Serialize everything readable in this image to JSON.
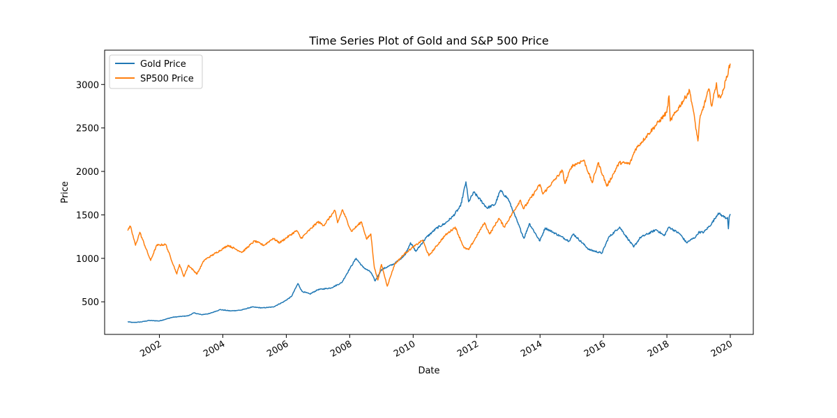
{
  "chart_data": {
    "type": "line",
    "title": "Time Series Plot of Gold and S&P 500 Price",
    "xlabel": "Date",
    "ylabel": "Price",
    "xlim": [
      "2000-04-10",
      "2020-09-22"
    ],
    "ylim": [
      125,
      3395
    ],
    "xticks": [
      "2002",
      "2004",
      "2006",
      "2008",
      "2010",
      "2012",
      "2014",
      "2016",
      "2018",
      "2020"
    ],
    "yticks": [
      500,
      1000,
      1500,
      2000,
      2500,
      3000
    ],
    "legend": "upper left",
    "grid": false,
    "series": [
      {
        "name": "Gold Price",
        "color": "#1f77b4",
        "points": [
          [
            "2001-01-01",
            270
          ],
          [
            "2001-03-01",
            262
          ],
          [
            "2001-06-01",
            268
          ],
          [
            "2001-09-01",
            285
          ],
          [
            "2002-01-01",
            280
          ],
          [
            "2002-06-01",
            322
          ],
          [
            "2002-12-01",
            340
          ],
          [
            "2003-02-01",
            372
          ],
          [
            "2003-05-01",
            352
          ],
          [
            "2003-08-01",
            365
          ],
          [
            "2003-12-01",
            410
          ],
          [
            "2004-04-01",
            395
          ],
          [
            "2004-08-01",
            405
          ],
          [
            "2004-12-01",
            440
          ],
          [
            "2005-04-01",
            430
          ],
          [
            "2005-08-01",
            440
          ],
          [
            "2005-12-01",
            500
          ],
          [
            "2006-03-01",
            560
          ],
          [
            "2006-05-15",
            710
          ],
          [
            "2006-07-01",
            620
          ],
          [
            "2006-10-01",
            590
          ],
          [
            "2007-01-01",
            640
          ],
          [
            "2007-06-01",
            660
          ],
          [
            "2007-10-01",
            720
          ],
          [
            "2008-01-01",
            880
          ],
          [
            "2008-03-15",
            1000
          ],
          [
            "2008-06-01",
            900
          ],
          [
            "2008-09-01",
            840
          ],
          [
            "2008-10-20",
            740
          ],
          [
            "2009-01-01",
            870
          ],
          [
            "2009-06-01",
            940
          ],
          [
            "2009-10-01",
            1040
          ],
          [
            "2009-12-01",
            1180
          ],
          [
            "2010-02-01",
            1080
          ],
          [
            "2010-06-01",
            1240
          ],
          [
            "2010-10-01",
            1350
          ],
          [
            "2011-01-01",
            1400
          ],
          [
            "2011-04-01",
            1480
          ],
          [
            "2011-07-01",
            1600
          ],
          [
            "2011-09-01",
            1880
          ],
          [
            "2011-10-01",
            1650
          ],
          [
            "2011-12-01",
            1760
          ],
          [
            "2012-05-01",
            1580
          ],
          [
            "2012-08-01",
            1620
          ],
          [
            "2012-10-01",
            1780
          ],
          [
            "2013-01-01",
            1680
          ],
          [
            "2013-04-15",
            1420
          ],
          [
            "2013-06-30",
            1230
          ],
          [
            "2013-09-01",
            1400
          ],
          [
            "2013-12-30",
            1200
          ],
          [
            "2014-03-01",
            1350
          ],
          [
            "2014-06-01",
            1300
          ],
          [
            "2014-09-01",
            1250
          ],
          [
            "2014-12-01",
            1200
          ],
          [
            "2015-01-20",
            1280
          ],
          [
            "2015-07-20",
            1100
          ],
          [
            "2015-12-15",
            1060
          ],
          [
            "2016-03-01",
            1240
          ],
          [
            "2016-07-05",
            1360
          ],
          [
            "2016-12-15",
            1130
          ],
          [
            "2017-03-01",
            1240
          ],
          [
            "2017-09-01",
            1330
          ],
          [
            "2017-12-01",
            1260
          ],
          [
            "2018-01-25",
            1360
          ],
          [
            "2018-06-01",
            1280
          ],
          [
            "2018-08-15",
            1180
          ],
          [
            "2018-12-01",
            1250
          ],
          [
            "2019-01-01",
            1300
          ],
          [
            "2019-03-01",
            1300
          ],
          [
            "2019-06-01",
            1400
          ],
          [
            "2019-08-15",
            1520
          ],
          [
            "2019-10-01",
            1490
          ],
          [
            "2019-11-20",
            1460
          ],
          [
            "2019-12-01",
            1470
          ],
          [
            "2019-12-10",
            1340
          ],
          [
            "2019-12-20",
            1480
          ],
          [
            "2019-12-31",
            1510
          ]
        ]
      },
      {
        "name": "SP500 Price",
        "color": "#ff7f0e",
        "points": [
          [
            "2001-01-01",
            1320
          ],
          [
            "2001-01-31",
            1370
          ],
          [
            "2001-04-01",
            1150
          ],
          [
            "2001-05-20",
            1300
          ],
          [
            "2001-09-21",
            975
          ],
          [
            "2001-12-01",
            1150
          ],
          [
            "2002-03-15",
            1160
          ],
          [
            "2002-07-20",
            820
          ],
          [
            "2002-08-20",
            930
          ],
          [
            "2002-10-10",
            790
          ],
          [
            "2002-12-01",
            920
          ],
          [
            "2003-03-10",
            820
          ],
          [
            "2003-06-01",
            980
          ],
          [
            "2003-12-31",
            1110
          ],
          [
            "2004-03-01",
            1150
          ],
          [
            "2004-08-10",
            1070
          ],
          [
            "2004-12-31",
            1200
          ],
          [
            "2005-04-20",
            1150
          ],
          [
            "2005-08-01",
            1230
          ],
          [
            "2005-10-15",
            1180
          ],
          [
            "2006-05-01",
            1320
          ],
          [
            "2006-06-20",
            1230
          ],
          [
            "2006-12-31",
            1420
          ],
          [
            "2007-03-10",
            1380
          ],
          [
            "2007-07-15",
            1550
          ],
          [
            "2007-08-15",
            1410
          ],
          [
            "2007-10-10",
            1560
          ],
          [
            "2008-01-20",
            1310
          ],
          [
            "2008-05-15",
            1420
          ],
          [
            "2008-07-15",
            1220
          ],
          [
            "2008-09-01",
            1280
          ],
          [
            "2008-10-10",
            900
          ],
          [
            "2008-11-20",
            750
          ],
          [
            "2009-01-01",
            930
          ],
          [
            "2009-03-09",
            680
          ],
          [
            "2009-06-01",
            930
          ],
          [
            "2009-10-01",
            1060
          ],
          [
            "2010-04-20",
            1210
          ],
          [
            "2010-07-01",
            1030
          ],
          [
            "2010-12-31",
            1260
          ],
          [
            "2011-04-30",
            1360
          ],
          [
            "2011-08-10",
            1120
          ],
          [
            "2011-10-03",
            1100
          ],
          [
            "2012-04-01",
            1410
          ],
          [
            "2012-06-01",
            1280
          ],
          [
            "2012-09-15",
            1460
          ],
          [
            "2012-11-15",
            1360
          ],
          [
            "2013-05-20",
            1670
          ],
          [
            "2013-06-25",
            1570
          ],
          [
            "2013-12-31",
            1850
          ],
          [
            "2014-02-03",
            1740
          ],
          [
            "2014-09-15",
            2010
          ],
          [
            "2014-10-15",
            1860
          ],
          [
            "2014-12-31",
            2060
          ],
          [
            "2015-05-20",
            2130
          ],
          [
            "2015-08-25",
            1870
          ],
          [
            "2015-11-01",
            2100
          ],
          [
            "2016-02-11",
            1830
          ],
          [
            "2016-07-01",
            2100
          ],
          [
            "2016-11-01",
            2090
          ],
          [
            "2016-12-31",
            2250
          ],
          [
            "2017-06-01",
            2430
          ],
          [
            "2017-12-31",
            2680
          ],
          [
            "2018-01-26",
            2870
          ],
          [
            "2018-02-08",
            2580
          ],
          [
            "2018-09-20",
            2930
          ],
          [
            "2018-11-01",
            2700
          ],
          [
            "2018-12-24",
            2350
          ],
          [
            "2019-01-15",
            2600
          ],
          [
            "2019-04-30",
            2950
          ],
          [
            "2019-06-01",
            2750
          ],
          [
            "2019-07-26",
            3020
          ],
          [
            "2019-08-15",
            2850
          ],
          [
            "2019-10-01",
            2890
          ],
          [
            "2019-12-31",
            3240
          ]
        ]
      }
    ]
  }
}
